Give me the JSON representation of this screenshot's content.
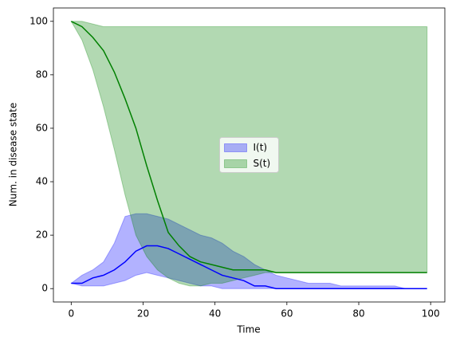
{
  "chart_data": {
    "type": "line",
    "xlabel": "Time",
    "ylabel": "Num. in disease state",
    "x": [
      0,
      3,
      6,
      9,
      12,
      15,
      18,
      21,
      24,
      27,
      30,
      33,
      36,
      39,
      42,
      45,
      48,
      51,
      54,
      57,
      60,
      63,
      66,
      69,
      72,
      75,
      78,
      81,
      84,
      87,
      90,
      93,
      96,
      99
    ],
    "series": [
      {
        "name": "I(t)",
        "color": "#0000ff",
        "band_alpha": 0.3,
        "values": [
          2,
          2,
          4,
          5,
          7,
          10,
          14,
          16,
          16,
          15,
          13,
          11,
          9,
          7,
          5,
          4,
          3,
          1,
          1,
          0,
          0,
          0,
          0,
          0,
          0,
          0,
          0,
          0,
          0,
          0,
          0,
          0,
          0,
          0
        ],
        "upper": [
          2,
          5,
          7,
          10,
          17,
          27,
          28,
          28,
          27,
          26,
          24,
          22,
          20,
          19,
          17,
          14,
          12,
          9,
          7,
          5,
          4,
          3,
          2,
          2,
          2,
          1,
          1,
          1,
          1,
          1,
          1,
          0,
          0,
          0
        ],
        "lower": [
          2,
          1,
          1,
          1,
          2,
          3,
          5,
          6,
          5,
          4,
          3,
          2,
          1,
          1,
          0,
          0,
          0,
          0,
          0,
          0,
          0,
          0,
          0,
          0,
          0,
          0,
          0,
          0,
          0,
          0,
          0,
          0,
          0,
          0
        ]
      },
      {
        "name": "S(t)",
        "color": "#008000",
        "band_alpha": 0.3,
        "values": [
          100,
          98,
          94,
          89,
          81,
          71,
          60,
          46,
          33,
          21,
          16,
          12,
          10,
          9,
          8,
          7,
          7,
          7,
          7,
          6,
          6,
          6,
          6,
          6,
          6,
          6,
          6,
          6,
          6,
          6,
          6,
          6,
          6,
          6
        ],
        "upper": [
          100,
          100,
          99,
          98,
          98,
          98,
          98,
          98,
          98,
          98,
          98,
          98,
          98,
          98,
          98,
          98,
          98,
          98,
          98,
          98,
          98,
          98,
          98,
          98,
          98,
          98,
          98,
          98,
          98,
          98,
          98,
          98,
          98,
          98
        ],
        "lower": [
          100,
          93,
          82,
          68,
          52,
          35,
          20,
          12,
          7,
          4,
          2,
          1,
          1,
          2,
          2,
          3,
          4,
          5,
          6,
          6,
          6,
          6,
          6,
          6,
          6,
          6,
          6,
          6,
          6,
          6,
          6,
          6,
          6,
          6
        ]
      }
    ],
    "xlim": [
      -4.95,
      103.95
    ],
    "ylim": [
      -5,
      105
    ],
    "xticks": [
      0,
      20,
      40,
      60,
      80,
      100
    ],
    "yticks": [
      0,
      20,
      40,
      60,
      80,
      100
    ],
    "legend": "center"
  }
}
